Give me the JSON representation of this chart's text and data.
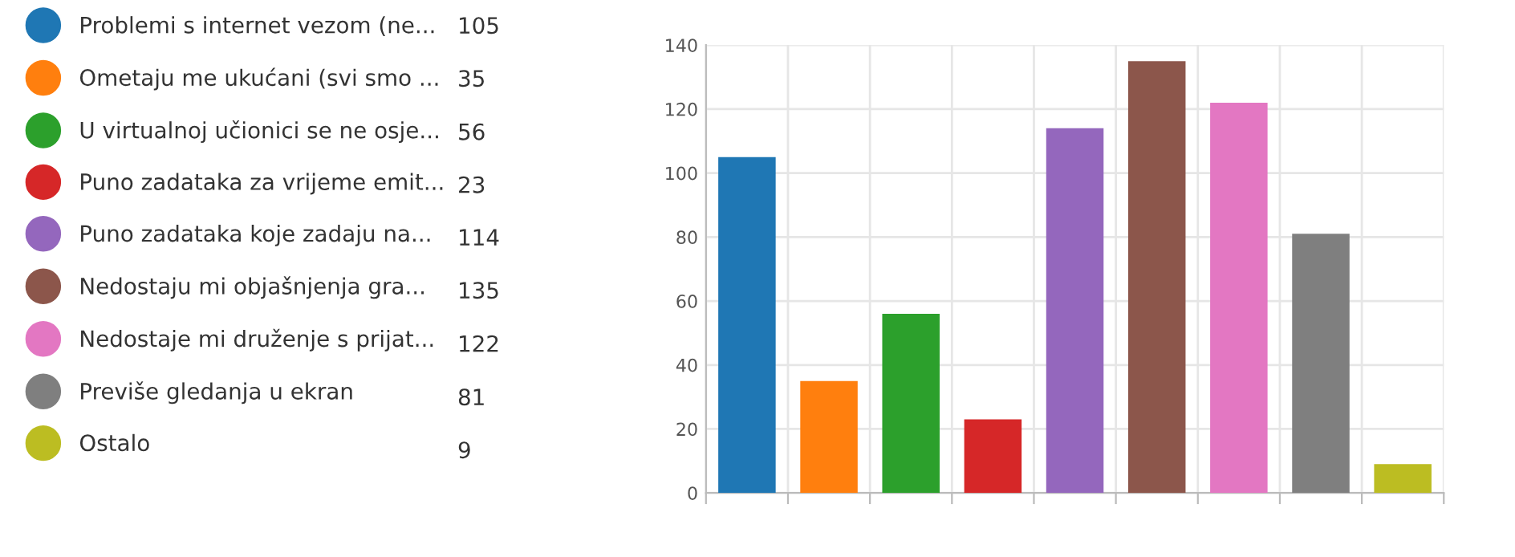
{
  "chart_data": {
    "type": "bar",
    "categories": [
      null,
      null,
      null,
      null,
      null,
      null,
      null,
      null,
      null
    ],
    "series": [
      {
        "name": "Problemi s internet vezom (ne...",
        "color": "#1f77b4",
        "values": [
          105,
          null,
          null,
          null,
          null,
          null,
          null,
          null,
          null
        ]
      },
      {
        "name": "Ometaju me ukućani (svi smo ...",
        "color": "#ff7f0e",
        "values": [
          null,
          35,
          null,
          null,
          null,
          null,
          null,
          null,
          null
        ]
      },
      {
        "name": "U virtualnoj učionici se ne osje...",
        "color": "#2ca02c",
        "values": [
          null,
          null,
          56,
          null,
          null,
          null,
          null,
          null,
          null
        ]
      },
      {
        "name": "Puno zadataka za vrijeme emit...",
        "color": "#d62728",
        "values": [
          null,
          null,
          null,
          23,
          null,
          null,
          null,
          null,
          null
        ]
      },
      {
        "name": "Puno zadataka koje zadaju na...",
        "color": "#9467bd",
        "values": [
          null,
          null,
          null,
          null,
          114,
          null,
          null,
          null,
          null
        ]
      },
      {
        "name": "Nedostaju mi objašnjenja gra...",
        "color": "#8c564b",
        "values": [
          null,
          null,
          null,
          null,
          null,
          135,
          null,
          null,
          null
        ]
      },
      {
        "name": "Nedostaje mi druženje s prijat...",
        "color": "#e377c2",
        "values": [
          null,
          null,
          null,
          null,
          null,
          null,
          122,
          null,
          null
        ]
      },
      {
        "name": "Previše gledanja u ekran",
        "color": "#7f7f7f",
        "values": [
          null,
          null,
          null,
          null,
          null,
          null,
          null,
          81,
          null
        ]
      },
      {
        "name": "Ostalo",
        "color": "#bcbd22",
        "values": [
          null,
          null,
          null,
          null,
          null,
          null,
          null,
          null,
          9
        ]
      }
    ],
    "ylim": [
      0,
      140
    ],
    "yticks": [
      0,
      20,
      40,
      60,
      80,
      100,
      120,
      140
    ],
    "annotations": [
      "105",
      "35",
      "56",
      "23",
      "114",
      "135",
      "122",
      "81",
      "9"
    ],
    "grid": true,
    "legend": "left",
    "tick_labels": "y"
  }
}
